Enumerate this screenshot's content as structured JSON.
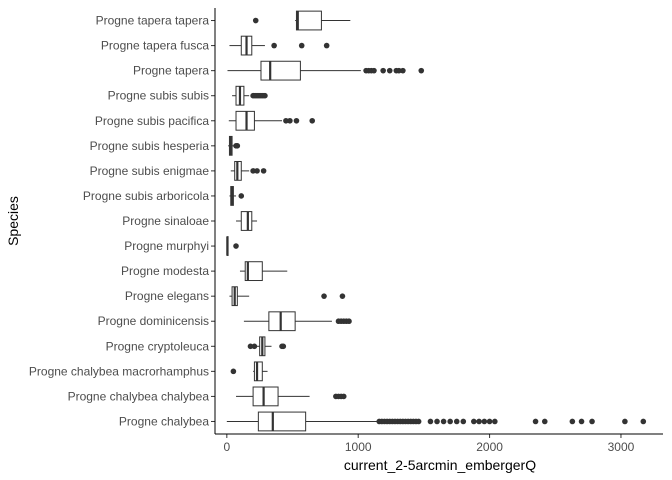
{
  "chart_data": {
    "type": "boxplot",
    "orientation": "horizontal",
    "xlabel": "current_2-5arcmin_embergerQ",
    "ylabel": "Species",
    "xlim": [
      -90,
      3320
    ],
    "x_ticks": [
      0,
      1000,
      2000,
      3000
    ],
    "grid": false,
    "legend": "none",
    "colors": {
      "box_stroke": "#333333",
      "box_fill": "#ffffff",
      "outlier": "#333333",
      "axis": "#000000"
    },
    "categories": [
      {
        "name": "Progne tapera tapera",
        "whisker_low": 520,
        "q1": 530,
        "median": 540,
        "q3": 720,
        "whisker_high": 940,
        "outliers": [
          220
        ]
      },
      {
        "name": "Progne tapera fusca",
        "whisker_low": 20,
        "q1": 110,
        "median": 150,
        "q3": 190,
        "whisker_high": 290,
        "outliers": [
          360,
          570,
          760
        ]
      },
      {
        "name": "Progne tapera",
        "whisker_low": 5,
        "q1": 260,
        "median": 330,
        "q3": 560,
        "whisker_high": 1020,
        "outliers": [
          1060,
          1080,
          1100,
          1120,
          1190,
          1240,
          1290,
          1310,
          1340,
          1480
        ]
      },
      {
        "name": "Progne subis subis",
        "whisker_low": 40,
        "q1": 70,
        "median": 100,
        "q3": 130,
        "whisker_high": 170,
        "outliers": [
          200,
          215,
          230,
          245,
          260,
          275,
          290
        ]
      },
      {
        "name": "Progne subis pacifica",
        "whisker_low": 15,
        "q1": 70,
        "median": 150,
        "q3": 210,
        "whisker_high": 420,
        "outliers": [
          450,
          480,
          530,
          650
        ]
      },
      {
        "name": "Progne subis hesperia",
        "whisker_low": 10,
        "q1": 20,
        "median": 30,
        "q3": 40,
        "whisker_high": 55,
        "outliers": [
          70,
          80
        ]
      },
      {
        "name": "Progne subis enigmae",
        "whisker_low": 30,
        "q1": 60,
        "median": 80,
        "q3": 110,
        "whisker_high": 170,
        "outliers": [
          200,
          230,
          280
        ]
      },
      {
        "name": "Progne subis arboricola",
        "whisker_low": 20,
        "q1": 30,
        "median": 40,
        "q3": 50,
        "whisker_high": 70,
        "outliers": [
          110
        ]
      },
      {
        "name": "Progne sinaloae",
        "whisker_low": 70,
        "q1": 110,
        "median": 160,
        "q3": 190,
        "whisker_high": 230,
        "outliers": []
      },
      {
        "name": "Progne murphyi",
        "whisker_low": 0,
        "q1": 2,
        "median": 4,
        "q3": 6,
        "whisker_high": 10,
        "outliers": [
          70
        ]
      },
      {
        "name": "Progne modesta",
        "whisker_low": 100,
        "q1": 140,
        "median": 160,
        "q3": 270,
        "whisker_high": 460,
        "outliers": []
      },
      {
        "name": "Progne elegans",
        "whisker_low": 20,
        "q1": 40,
        "median": 60,
        "q3": 80,
        "whisker_high": 170,
        "outliers": [
          740,
          880
        ]
      },
      {
        "name": "Progne dominicensis",
        "whisker_low": 130,
        "q1": 320,
        "median": 410,
        "q3": 520,
        "whisker_high": 800,
        "outliers": [
          850,
          870,
          890,
          910,
          930
        ]
      },
      {
        "name": "Progne cryptoleuca",
        "whisker_low": 190,
        "q1": 250,
        "median": 270,
        "q3": 290,
        "whisker_high": 340,
        "outliers": [
          180,
          210,
          420,
          430
        ]
      },
      {
        "name": "Progne chalybea macrorhamphus",
        "whisker_low": 200,
        "q1": 210,
        "median": 230,
        "q3": 270,
        "whisker_high": 310,
        "outliers": [
          50
        ]
      },
      {
        "name": "Progne chalybea chalybea",
        "whisker_low": 70,
        "q1": 200,
        "median": 280,
        "q3": 390,
        "whisker_high": 630,
        "outliers": [
          830,
          850,
          870,
          890
        ]
      },
      {
        "name": "Progne chalybea",
        "whisker_low": 0,
        "q1": 240,
        "median": 350,
        "q3": 600,
        "whisker_high": 1140,
        "outliers": [
          1160,
          1180,
          1200,
          1220,
          1240,
          1260,
          1280,
          1300,
          1320,
          1340,
          1360,
          1380,
          1400,
          1420,
          1440,
          1460,
          1550,
          1600,
          1650,
          1700,
          1750,
          1800,
          1880,
          1920,
          1960,
          2000,
          2040,
          2350,
          2420,
          2630,
          2700,
          2780,
          3030,
          3170
        ]
      }
    ]
  }
}
